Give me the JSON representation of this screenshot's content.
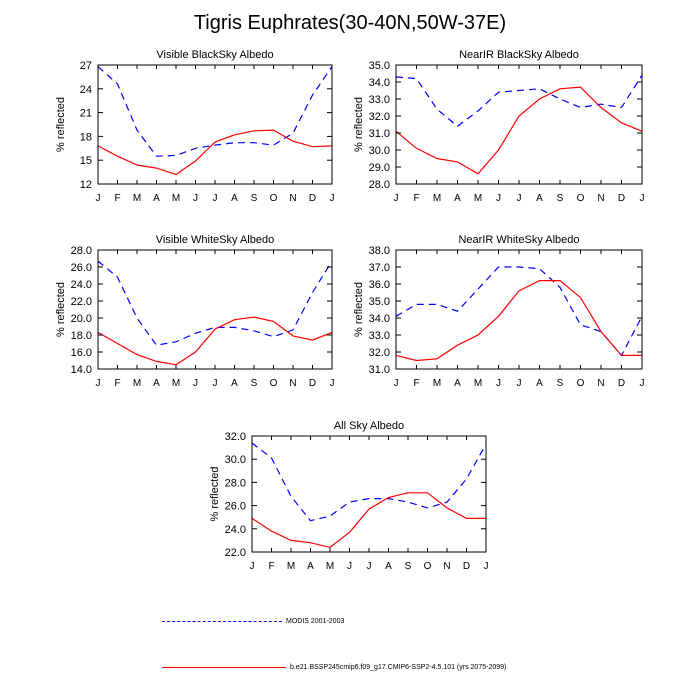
{
  "title": "Tigris Euphrates(30-40N,50W-37E)",
  "colors": {
    "modis": "#0000ff",
    "model": "#ff0000",
    "frame": "#000000"
  },
  "legend": [
    {
      "label": "MODIS 2001-2003",
      "style": "dashed",
      "color": "#0000ff"
    },
    {
      "label": "b.e21.BSSP245cmip6.f09_g17.CMIP6-SSP2-4.5.101 (yrs 2075-2099)",
      "style": "solid",
      "color": "#ff0000"
    }
  ],
  "chart_data": [
    {
      "type": "line",
      "title": "Visible BlackSky Albedo",
      "ylabel": "% reflected",
      "categories": [
        "J",
        "F",
        "M",
        "A",
        "M",
        "J",
        "J",
        "A",
        "S",
        "O",
        "N",
        "D",
        "J"
      ],
      "ylim": [
        12,
        27
      ],
      "yticks": [
        "12",
        "15",
        "18",
        "21",
        "24",
        "27"
      ],
      "series": [
        {
          "key": "modis",
          "values": [
            26.8,
            24.6,
            18.8,
            15.5,
            15.6,
            16.5,
            16.9,
            17.2,
            17.2,
            16.9,
            18.4,
            23.2,
            26.8
          ]
        },
        {
          "key": "model",
          "values": [
            16.8,
            15.5,
            14.4,
            14.0,
            13.2,
            14.9,
            17.3,
            18.2,
            18.7,
            18.8,
            17.4,
            16.7,
            16.8
          ]
        }
      ]
    },
    {
      "type": "line",
      "title": "NearIR BlackSky Albedo",
      "ylabel": "% reflected",
      "categories": [
        "J",
        "F",
        "M",
        "A",
        "M",
        "J",
        "J",
        "A",
        "S",
        "O",
        "N",
        "D",
        "J"
      ],
      "ylim": [
        28,
        35
      ],
      "yticks": [
        "28.0",
        "29.0",
        "30.0",
        "31.0",
        "32.0",
        "33.0",
        "34.0",
        "35.0"
      ],
      "series": [
        {
          "key": "modis",
          "values": [
            34.3,
            34.2,
            32.4,
            31.4,
            32.3,
            33.4,
            33.5,
            33.6,
            33.0,
            32.5,
            32.7,
            32.5,
            34.4
          ]
        },
        {
          "key": "model",
          "values": [
            31.1,
            30.1,
            29.5,
            29.3,
            28.6,
            30.0,
            32.0,
            33.0,
            33.6,
            33.7,
            32.5,
            31.6,
            31.1
          ]
        }
      ]
    },
    {
      "type": "line",
      "title": "Visible WhiteSky Albedo",
      "ylabel": "% reflected",
      "categories": [
        "J",
        "F",
        "M",
        "A",
        "M",
        "J",
        "J",
        "A",
        "S",
        "O",
        "N",
        "D",
        "J"
      ],
      "ylim": [
        14,
        28
      ],
      "yticks": [
        "14.0",
        "16.0",
        "18.0",
        "20.0",
        "22.0",
        "24.0",
        "26.0",
        "28.0"
      ],
      "series": [
        {
          "key": "modis",
          "values": [
            26.7,
            24.8,
            20.0,
            16.8,
            17.2,
            18.2,
            18.9,
            18.9,
            18.5,
            17.8,
            18.6,
            23.0,
            26.7
          ]
        },
        {
          "key": "model",
          "values": [
            18.3,
            17.0,
            15.7,
            14.9,
            14.5,
            16.0,
            18.7,
            19.8,
            20.1,
            19.6,
            17.9,
            17.4,
            18.3
          ]
        }
      ]
    },
    {
      "type": "line",
      "title": "NearIR WhiteSky Albedo",
      "ylabel": "% reflected",
      "categories": [
        "J",
        "F",
        "M",
        "A",
        "M",
        "J",
        "J",
        "A",
        "S",
        "O",
        "N",
        "D",
        "J"
      ],
      "ylim": [
        31,
        38
      ],
      "yticks": [
        "31.0",
        "32.0",
        "33.0",
        "34.0",
        "35.0",
        "36.0",
        "37.0",
        "38.0"
      ],
      "series": [
        {
          "key": "modis",
          "values": [
            34.1,
            34.8,
            34.8,
            34.4,
            35.7,
            37.0,
            37.0,
            36.9,
            35.8,
            33.6,
            33.2,
            31.8,
            34.1
          ]
        },
        {
          "key": "model",
          "values": [
            31.8,
            31.5,
            31.6,
            32.4,
            33.0,
            34.1,
            35.6,
            36.2,
            36.2,
            35.2,
            33.2,
            31.8,
            31.8
          ]
        }
      ]
    },
    {
      "type": "line",
      "title": "All Sky Albedo",
      "ylabel": "% reflected",
      "categories": [
        "J",
        "F",
        "M",
        "A",
        "M",
        "J",
        "J",
        "A",
        "S",
        "O",
        "N",
        "D",
        "J"
      ],
      "ylim": [
        22,
        32
      ],
      "yticks": [
        "22.0",
        "24.0",
        "26.0",
        "28.0",
        "30.0",
        "32.0"
      ],
      "series": [
        {
          "key": "modis",
          "values": [
            31.4,
            30.1,
            26.8,
            24.7,
            25.1,
            26.3,
            26.6,
            26.6,
            26.3,
            25.8,
            26.3,
            28.3,
            31.3
          ]
        },
        {
          "key": "model",
          "values": [
            24.9,
            23.8,
            23.0,
            22.8,
            22.4,
            23.7,
            25.7,
            26.7,
            27.1,
            27.1,
            25.8,
            24.9,
            24.9
          ]
        }
      ]
    }
  ]
}
